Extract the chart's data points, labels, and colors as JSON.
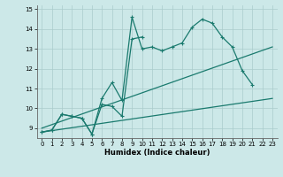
{
  "xlabel": "Humidex (Indice chaleur)",
  "bg_color": "#cce8e8",
  "grid_color": "#aacccc",
  "line_color": "#1a7a6e",
  "xlim": [
    -0.5,
    23.5
  ],
  "ylim": [
    8.5,
    15.2
  ],
  "yticks": [
    9,
    10,
    11,
    12,
    13,
    14,
    15
  ],
  "xticks": [
    0,
    1,
    2,
    3,
    4,
    5,
    6,
    7,
    8,
    9,
    10,
    11,
    12,
    13,
    14,
    15,
    16,
    17,
    18,
    19,
    20,
    21,
    22,
    23
  ],
  "line1_x": [
    0,
    1,
    2,
    3,
    4,
    5,
    6,
    7,
    8,
    9,
    10,
    11,
    12,
    13,
    14,
    15,
    16,
    17,
    18,
    19,
    20,
    21
  ],
  "line1_y": [
    8.8,
    8.9,
    9.7,
    9.6,
    9.5,
    8.7,
    10.5,
    11.3,
    10.4,
    14.6,
    13.0,
    13.1,
    12.9,
    13.1,
    13.3,
    14.1,
    14.5,
    14.3,
    13.6,
    13.1,
    11.9,
    11.2
  ],
  "line2_x": [
    0,
    1,
    2,
    3,
    4,
    5,
    6,
    7,
    8,
    9,
    10
  ],
  "line2_y": [
    8.8,
    8.9,
    9.7,
    9.6,
    9.5,
    8.7,
    10.2,
    10.1,
    9.6,
    13.5,
    13.6
  ],
  "line3_x": [
    0,
    23
  ],
  "line3_y": [
    8.8,
    10.5
  ],
  "line4_x": [
    0,
    23
  ],
  "line4_y": [
    9.0,
    13.1
  ]
}
